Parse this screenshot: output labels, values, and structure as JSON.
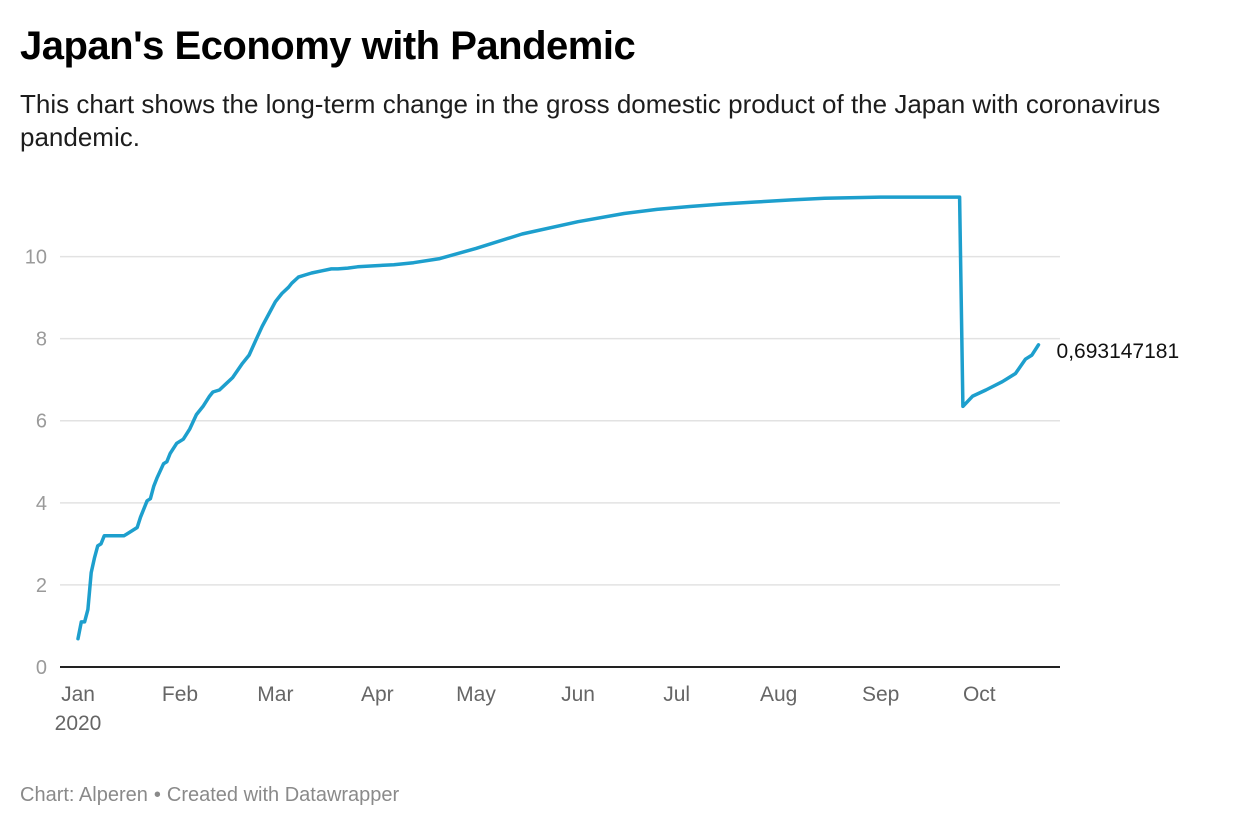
{
  "header": {
    "title": "Japan's Economy with Pandemic",
    "subtitle": "This chart shows the long-term change in the gross domestic product of the Japan with coronavirus pandemic."
  },
  "footer": {
    "source": "Chart: Alperen",
    "credit": "Created with Datawrapper"
  },
  "colors": {
    "line": "#1d9fcd",
    "grid": "#e2e2e2",
    "axis": "#222222",
    "tick_text": "#9a9a9a",
    "label_text": "#666666"
  },
  "chart_data": {
    "type": "line",
    "title": "Japan's Economy with Pandemic",
    "xlabel": "",
    "ylabel": "",
    "ylim": [
      0,
      11.5
    ],
    "xlim": [
      "2020-01-01",
      "2020-10-31"
    ],
    "yticks": [
      0,
      2,
      4,
      6,
      8,
      10
    ],
    "xticks": [
      {
        "date": "2020-01-01",
        "label": "Jan",
        "sublabel": "2020"
      },
      {
        "date": "2020-02-01",
        "label": "Feb"
      },
      {
        "date": "2020-03-01",
        "label": "Mar"
      },
      {
        "date": "2020-04-01",
        "label": "Apr"
      },
      {
        "date": "2020-05-01",
        "label": "May"
      },
      {
        "date": "2020-06-01",
        "label": "Jun"
      },
      {
        "date": "2020-07-01",
        "label": "Jul"
      },
      {
        "date": "2020-08-01",
        "label": "Aug"
      },
      {
        "date": "2020-09-01",
        "label": "Sep"
      },
      {
        "date": "2020-10-01",
        "label": "Oct"
      }
    ],
    "grid": true,
    "end_label": "0,693147181",
    "series": [
      {
        "x": [
          "2020-01-01",
          "2020-01-02",
          "2020-01-03",
          "2020-01-04",
          "2020-01-05",
          "2020-01-06",
          "2020-01-07",
          "2020-01-08",
          "2020-01-09",
          "2020-01-10",
          "2020-01-12",
          "2020-01-13",
          "2020-01-15",
          "2020-01-19",
          "2020-01-20",
          "2020-01-22",
          "2020-01-23",
          "2020-01-24",
          "2020-01-25",
          "2020-01-27",
          "2020-01-28",
          "2020-01-29",
          "2020-01-31",
          "2020-02-02",
          "2020-02-04",
          "2020-02-06",
          "2020-02-08",
          "2020-02-10",
          "2020-02-11",
          "2020-02-13",
          "2020-02-15",
          "2020-02-17",
          "2020-02-20",
          "2020-02-22",
          "2020-02-24",
          "2020-02-26",
          "2020-02-28",
          "2020-03-01",
          "2020-03-03",
          "2020-03-05",
          "2020-03-06",
          "2020-03-08",
          "2020-03-10",
          "2020-03-12",
          "2020-03-15",
          "2020-03-18",
          "2020-03-20",
          "2020-03-23",
          "2020-03-26",
          "2020-04-01",
          "2020-04-06",
          "2020-04-12",
          "2020-04-20",
          "2020-05-01",
          "2020-05-15",
          "2020-06-01",
          "2020-06-15",
          "2020-06-25",
          "2020-07-05",
          "2020-07-15",
          "2020-07-25",
          "2020-08-05",
          "2020-08-15",
          "2020-09-01",
          "2020-09-15",
          "2020-09-25",
          "2020-09-26",
          "2020-09-29",
          "2020-10-03",
          "2020-10-08",
          "2020-10-12",
          "2020-10-15",
          "2020-10-17",
          "2020-10-19"
        ],
        "values": [
          0.69,
          1.1,
          1.1,
          1.4,
          2.3,
          2.65,
          2.95,
          3.0,
          3.2,
          3.2,
          3.2,
          3.2,
          3.2,
          3.4,
          3.65,
          4.05,
          4.1,
          4.4,
          4.6,
          4.95,
          5.0,
          5.2,
          5.45,
          5.55,
          5.8,
          6.15,
          6.35,
          6.6,
          6.7,
          6.75,
          6.9,
          7.05,
          7.4,
          7.6,
          7.95,
          8.3,
          8.6,
          8.9,
          9.1,
          9.25,
          9.35,
          9.5,
          9.55,
          9.6,
          9.65,
          9.7,
          9.7,
          9.72,
          9.75,
          9.78,
          9.8,
          9.85,
          9.95,
          10.2,
          10.55,
          10.85,
          11.05,
          11.15,
          11.22,
          11.28,
          11.33,
          11.38,
          11.42,
          11.45,
          11.45,
          11.45,
          6.35,
          6.6,
          6.75,
          6.95,
          7.15,
          7.5,
          7.6,
          7.85
        ]
      }
    ]
  }
}
